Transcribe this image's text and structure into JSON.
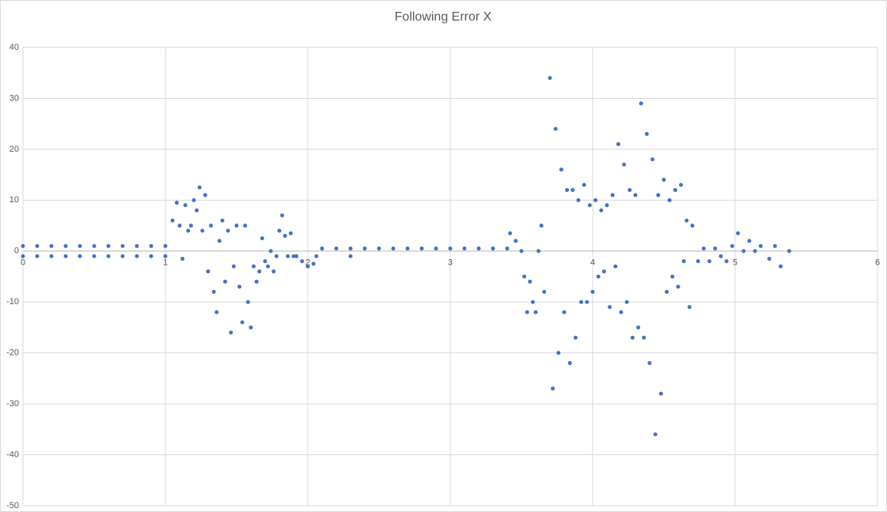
{
  "chart_data": {
    "type": "scatter",
    "title": "Following Error X",
    "color": "#4472c4",
    "x": [
      0,
      0.1,
      0.2,
      0.3,
      0.4,
      0.5,
      0.6,
      0.7,
      0.8,
      0.9,
      1,
      0,
      0.1,
      0.2,
      0.3,
      0.4,
      0.5,
      0.6,
      0.7,
      0.8,
      0.9,
      1,
      1.05,
      1.08,
      1.1,
      1.12,
      1.14,
      1.16,
      1.18,
      1.2,
      1.22,
      1.24,
      1.26,
      1.28,
      1.3,
      1.32,
      1.34,
      1.36,
      1.38,
      1.4,
      1.42,
      1.44,
      1.46,
      1.48,
      1.5,
      1.52,
      1.54,
      1.56,
      1.58,
      1.6,
      1.62,
      1.64,
      1.66,
      1.68,
      1.7,
      1.72,
      1.74,
      1.76,
      1.78,
      1.8,
      1.82,
      1.84,
      1.86,
      1.88,
      1.9,
      1.92,
      1.96,
      2,
      2.04,
      2.06,
      2.1,
      2.2,
      2.3,
      2.4,
      2.5,
      2.6,
      2.7,
      2.8,
      2.9,
      3,
      3.1,
      3.2,
      3.3,
      3.4,
      2.3,
      3.42,
      3.46,
      3.5,
      3.52,
      3.54,
      3.56,
      3.58,
      3.6,
      3.62,
      3.64,
      3.66,
      3.7,
      3.72,
      3.74,
      3.76,
      3.78,
      3.8,
      3.82,
      3.84,
      3.86,
      3.88,
      3.9,
      3.92,
      3.94,
      3.96,
      3.98,
      4,
      4.02,
      4.04,
      4.06,
      4.08,
      4.1,
      4.12,
      4.14,
      4.16,
      4.18,
      4.2,
      4.22,
      4.24,
      4.26,
      4.28,
      4.3,
      4.32,
      4.34,
      4.36,
      4.38,
      4.4,
      4.42,
      4.44,
      4.46,
      4.48,
      4.5,
      4.52,
      4.54,
      4.56,
      4.58,
      4.6,
      4.62,
      4.64,
      4.66,
      4.68,
      4.7,
      4.74,
      4.78,
      4.82,
      4.86,
      4.9,
      4.94,
      4.98,
      5.02,
      5.06,
      5.1,
      5.14,
      5.18,
      5.24,
      5.28,
      5.32,
      5.38
    ],
    "values": [
      1,
      1,
      1,
      1,
      1,
      1,
      1,
      1,
      1,
      1,
      1,
      -1,
      -1,
      -1,
      -1,
      -1,
      -1,
      -1,
      -1,
      -1,
      -1,
      -1,
      6,
      9.5,
      5,
      -1.5,
      9,
      4,
      5,
      10,
      8,
      12.5,
      4,
      11,
      -4,
      5,
      -8,
      -12,
      2,
      6,
      -6,
      4,
      -16,
      -3,
      5,
      -7,
      -14,
      5,
      -10,
      -15,
      -3,
      -6,
      -4,
      2.5,
      -2,
      -3,
      0,
      -4,
      -1,
      4,
      7,
      3,
      -1,
      3.5,
      -1,
      -1,
      -2,
      -3,
      -2.5,
      -1,
      0.5,
      0.5,
      0.5,
      0.5,
      0.5,
      0.5,
      0.5,
      0.5,
      0.5,
      0.5,
      0.5,
      0.5,
      0.5,
      0.5,
      -1,
      3.5,
      2,
      0,
      -5,
      -12,
      -6,
      -10,
      -12,
      0,
      5,
      -8,
      34,
      -27,
      24,
      -20,
      16,
      -12,
      12,
      -22,
      12,
      -17,
      10,
      -10,
      13,
      -10,
      9,
      -8,
      10,
      -5,
      8,
      -4,
      9,
      -11,
      11,
      -3,
      21,
      -12,
      17,
      -10,
      12,
      -17,
      11,
      -15,
      29,
      -17,
      23,
      -22,
      18,
      -36,
      11,
      -28,
      14,
      -8,
      10,
      -5,
      12,
      -7,
      13,
      -2,
      6,
      -11,
      5,
      -2,
      0.5,
      -2,
      0.5,
      -1,
      -2,
      1,
      3.5,
      0,
      2,
      0,
      1,
      -1.5,
      1,
      -3,
      0
    ],
    "xlim": [
      0,
      6
    ],
    "ylim": [
      -50,
      40
    ],
    "xticks": [
      0,
      1,
      2,
      3,
      4,
      5,
      6
    ],
    "yticks": [
      -50,
      -40,
      -30,
      -20,
      -10,
      0,
      10,
      20,
      30,
      40
    ],
    "grid": true
  }
}
